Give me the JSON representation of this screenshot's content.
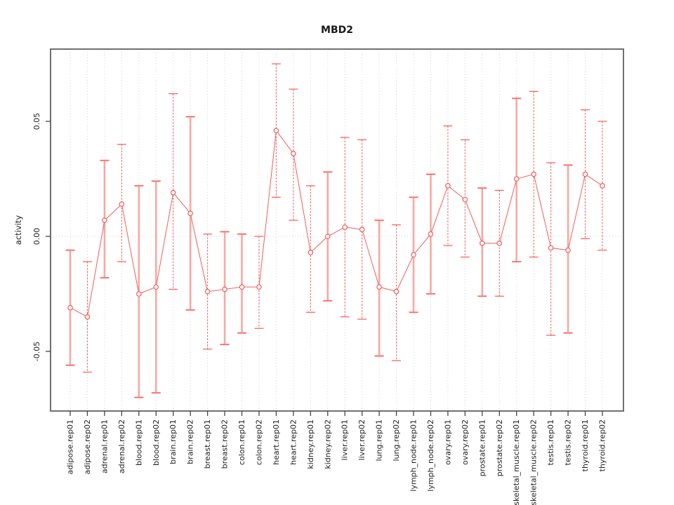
{
  "page": {
    "background": "#ffffff"
  },
  "chart_data": {
    "type": "line",
    "title": "MBD2",
    "xlabel": "",
    "ylabel": "activity",
    "legend_position": "none",
    "grid": "dotted vertical line at every category; dotted horizontal line at y=0",
    "y_ticks": [
      -0.05,
      0.0,
      0.05
    ],
    "y_tick_labels": [
      "-0.05",
      "0.00",
      "0.05"
    ],
    "ylim": [
      -0.076,
      0.0815
    ],
    "colors": {
      "series_red": "#f45c58",
      "error_bar_pink": "#f9a7a3",
      "grid_gray": "#d4d4d4",
      "border_gray": "#707070",
      "point_fill": "#ffffff"
    },
    "categories": [
      "adipose.rep01",
      "adipose.rep02",
      "adrenal.rep01",
      "adrenal.rep02",
      "blood.rep01",
      "blood.rep02",
      "brain.rep01",
      "brain.rep02",
      "breast.rep01",
      "breast.rep02",
      "colon.rep01",
      "colon.rep02",
      "heart.rep01",
      "heart.rep02",
      "kidney.rep01",
      "kidney.rep02",
      "liver.rep01",
      "liver.rep02",
      "lung.rep01",
      "lung.rep02",
      "lymph_node.rep01",
      "lymph_node.rep02",
      "ovary.rep01",
      "ovary.rep02",
      "prostate.rep01",
      "prostate.rep02",
      "skeletal_muscle.rep01",
      "skeletal_muscle.rep02",
      "testis.rep01",
      "testis.rep02",
      "thyroid.rep01",
      "thyroid.rep02"
    ],
    "series": [
      {
        "name": "activity",
        "values": [
          -0.031,
          -0.035,
          0.007,
          0.014,
          -0.025,
          -0.022,
          0.019,
          0.01,
          -0.024,
          -0.023,
          -0.022,
          -0.022,
          0.046,
          0.036,
          -0.007,
          0.0,
          0.004,
          0.003,
          -0.022,
          -0.024,
          -0.008,
          0.001,
          0.022,
          0.016,
          -0.003,
          -0.003,
          0.025,
          0.027,
          -0.005,
          -0.006,
          0.027,
          0.022
        ]
      }
    ],
    "points": [
      {
        "label": "adipose.rep01",
        "value": -0.031,
        "lo": -0.056,
        "hi": -0.006,
        "bar_style": "pink"
      },
      {
        "label": "adipose.rep02",
        "value": -0.035,
        "lo": -0.059,
        "hi": -0.011,
        "bar_style": "dashed"
      },
      {
        "label": "adrenal.rep01",
        "value": 0.007,
        "lo": -0.018,
        "hi": 0.033,
        "bar_style": "pink"
      },
      {
        "label": "adrenal.rep02",
        "value": 0.014,
        "lo": -0.011,
        "hi": 0.04,
        "bar_style": "dashed"
      },
      {
        "label": "blood.rep01",
        "value": -0.025,
        "lo": -0.07,
        "hi": 0.022,
        "bar_style": "pink"
      },
      {
        "label": "blood.rep02",
        "value": -0.022,
        "lo": -0.068,
        "hi": 0.024,
        "bar_style": "pink"
      },
      {
        "label": "brain.rep01",
        "value": 0.019,
        "lo": -0.023,
        "hi": 0.062,
        "bar_style": "dashed"
      },
      {
        "label": "brain.rep02",
        "value": 0.01,
        "lo": -0.032,
        "hi": 0.052,
        "bar_style": "pink"
      },
      {
        "label": "breast.rep01",
        "value": -0.024,
        "lo": -0.049,
        "hi": 0.001,
        "bar_style": "dashed"
      },
      {
        "label": "breast.rep02",
        "value": -0.023,
        "lo": -0.047,
        "hi": 0.002,
        "bar_style": "pink"
      },
      {
        "label": "colon.rep01",
        "value": -0.022,
        "lo": -0.042,
        "hi": 0.001,
        "bar_style": "pink"
      },
      {
        "label": "colon.rep02",
        "value": -0.022,
        "lo": -0.04,
        "hi": 0.0,
        "bar_style": "dashed"
      },
      {
        "label": "heart.rep01",
        "value": 0.046,
        "lo": 0.017,
        "hi": 0.075,
        "bar_style": "dashed"
      },
      {
        "label": "heart.rep02",
        "value": 0.036,
        "lo": 0.007,
        "hi": 0.064,
        "bar_style": "dashed"
      },
      {
        "label": "kidney.rep01",
        "value": -0.007,
        "lo": -0.033,
        "hi": 0.022,
        "bar_style": "dashed"
      },
      {
        "label": "kidney.rep02",
        "value": 0.0,
        "lo": -0.028,
        "hi": 0.028,
        "bar_style": "pink"
      },
      {
        "label": "liver.rep01",
        "value": 0.004,
        "lo": -0.035,
        "hi": 0.043,
        "bar_style": "dashed"
      },
      {
        "label": "liver.rep02",
        "value": 0.003,
        "lo": -0.036,
        "hi": 0.042,
        "bar_style": "dashed"
      },
      {
        "label": "lung.rep01",
        "value": -0.022,
        "lo": -0.052,
        "hi": 0.007,
        "bar_style": "pink"
      },
      {
        "label": "lung.rep02",
        "value": -0.024,
        "lo": -0.054,
        "hi": 0.005,
        "bar_style": "dashed"
      },
      {
        "label": "lymph_node.rep01",
        "value": -0.008,
        "lo": -0.033,
        "hi": 0.017,
        "bar_style": "pink"
      },
      {
        "label": "lymph_node.rep02",
        "value": 0.001,
        "lo": -0.025,
        "hi": 0.027,
        "bar_style": "pink"
      },
      {
        "label": "ovary.rep01",
        "value": 0.022,
        "lo": -0.004,
        "hi": 0.048,
        "bar_style": "dashed"
      },
      {
        "label": "ovary.rep02",
        "value": 0.016,
        "lo": -0.009,
        "hi": 0.042,
        "bar_style": "dashed"
      },
      {
        "label": "prostate.rep01",
        "value": -0.003,
        "lo": -0.026,
        "hi": 0.021,
        "bar_style": "pink"
      },
      {
        "label": "prostate.rep02",
        "value": -0.003,
        "lo": -0.026,
        "hi": 0.02,
        "bar_style": "dashed"
      },
      {
        "label": "skeletal_muscle.rep01",
        "value": 0.025,
        "lo": -0.011,
        "hi": 0.06,
        "bar_style": "pink"
      },
      {
        "label": "skeletal_muscle.rep02",
        "value": 0.027,
        "lo": -0.009,
        "hi": 0.063,
        "bar_style": "dashed"
      },
      {
        "label": "testis.rep01",
        "value": -0.005,
        "lo": -0.043,
        "hi": 0.032,
        "bar_style": "dashed"
      },
      {
        "label": "testis.rep02",
        "value": -0.006,
        "lo": -0.042,
        "hi": 0.031,
        "bar_style": "pink"
      },
      {
        "label": "thyroid.rep01",
        "value": 0.027,
        "lo": -0.001,
        "hi": 0.055,
        "bar_style": "dashed"
      },
      {
        "label": "thyroid.rep02",
        "value": 0.022,
        "lo": -0.006,
        "hi": 0.05,
        "bar_style": "dashed"
      }
    ]
  }
}
